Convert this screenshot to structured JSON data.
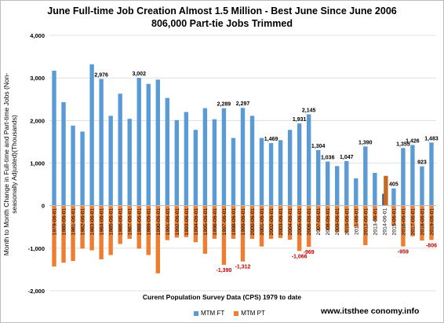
{
  "title": "June Full-time Job Creation Almost 1.5 Million - Best June Since June 2006",
  "subtitle": "806,000 Part-tie Jobs Trimmed",
  "watermark": "www.itsthee conomy.info",
  "colors": {
    "ft": "#5b9bd5",
    "pt": "#ed7d31",
    "ft_highlight": "#3f5f8c",
    "pt_highlight": "#c76a1f",
    "label": "#c00000"
  },
  "chart_data": {
    "type": "bar",
    "title": "June Full-time Job Creation Almost 1.5 Million - Best June Since June 2006",
    "subtitle": "806,000 Part-tie Jobs Trimmed",
    "xlabel": "Curent Population Survey Data (CPS) 1979 to date",
    "ylabel": "Month to Month Change in Full-time and Part-time Jobs (Non-seasonally Adjusted)(Thousands)",
    "ylim": [
      -2000,
      4000
    ],
    "yticks": [
      -2000,
      -1000,
      0,
      1000,
      2000,
      3000,
      4000
    ],
    "ytick_labels": [
      "-2,000",
      "-1,000",
      "0",
      "1,000",
      "2,000",
      "3,000",
      "4,000"
    ],
    "grid": true,
    "legend_position": "bottom",
    "categories": [
      "1979-06-01",
      "1980-06-01",
      "1981-06-01",
      "1982-06-01",
      "1983-06-01",
      "1984-06-01",
      "1985-06-01",
      "1986-06-01",
      "1987-06-01",
      "1988-06-01",
      "1989-06-01",
      "1990-06-01",
      "1991-06-01",
      "1992-06-01",
      "1993-06-01",
      "1994-06-01",
      "1995-06-01",
      "1996-06-01",
      "1997-06-01",
      "1998-06-01",
      "1999-06-01",
      "2000-06-01",
      "2001-06-01",
      "2002-06-01",
      "2003-06-01",
      "2004-06-01",
      "2005-06-01",
      "2006-06-01",
      "2007-06-01",
      "2008-06-01",
      "2009-06-01",
      "2010-06-01",
      "2011-06-01",
      "2012-06-01",
      "2013-06-01",
      "2014-06-01",
      "2015-06-01",
      "2016-06-01",
      "2017-06-01",
      "2018-06-01",
      "2019-06-01"
    ],
    "category_labels": [
      "1979-06-01",
      "1980-06-01",
      "1981-06-01",
      "1982-06-01",
      "1983-06-01",
      "1984-06-01",
      "1985-06-01",
      "1986-06-01",
      "1987-06-01",
      "1988-06-01",
      "1989-06-01",
      "1990-06-01",
      "1991-06-01",
      "1992-06-01",
      "1993-06-01",
      "1994-06-01",
      "1995-06-01",
      "1996-06-01",
      "1997-06-01",
      "1998-06-01",
      "1999-06-01",
      "2000-06-01",
      "2001-06-01",
      "2002-06-01",
      "2003-06-01",
      "2004-06-01",
      "2005-06-01",
      "2006-06-01",
      "2007-06-01",
      "2008-06-01",
      "2009-06-01",
      "2010-06-01",
      "2011-06-01",
      "2012-06-01",
      "2013-06-01",
      "2014-06-01",
      "2015-06-01",
      "2016-06-01",
      "2017-06-01",
      "2018-06-01",
      "2019-06-01"
    ],
    "series": [
      {
        "name": "MTM FT",
        "values": [
          3170,
          2430,
          1880,
          1740,
          3320,
          2976,
          2110,
          2630,
          2040,
          3002,
          2860,
          2960,
          2530,
          2010,
          2200,
          1780,
          2290,
          2030,
          2289,
          1590,
          2297,
          2110,
          1590,
          1469,
          1540,
          1780,
          1931,
          2145,
          1304,
          1036,
          930,
          1047,
          640,
          1390,
          770,
          280,
          405,
          1355,
          1426,
          923,
          1483
        ]
      },
      {
        "name": "MTM PT",
        "values": [
          -1430,
          -1340,
          -1300,
          -1010,
          -1050,
          -1260,
          -1160,
          -900,
          -780,
          -1010,
          -1160,
          -1590,
          -810,
          -750,
          -740,
          -860,
          -1130,
          -780,
          -1390,
          -780,
          -1312,
          -780,
          -960,
          -780,
          -760,
          -800,
          -1066,
          -969,
          -590,
          -570,
          -620,
          -640,
          -500,
          -930,
          -360,
          700,
          -470,
          -959,
          -720,
          -820,
          -806
        ]
      }
    ],
    "data_labels": [
      {
        "index": 5,
        "series": "MTM FT",
        "text": "2,976"
      },
      {
        "index": 9,
        "series": "MTM FT",
        "text": "3,002"
      },
      {
        "index": 18,
        "series": "MTM FT",
        "text": "2,289"
      },
      {
        "index": 20,
        "series": "MTM FT",
        "text": "2,297"
      },
      {
        "index": 23,
        "series": "MTM FT",
        "text": "1,469"
      },
      {
        "index": 26,
        "series": "MTM FT",
        "text": "1,931"
      },
      {
        "index": 27,
        "series": "MTM FT",
        "text": "2,145"
      },
      {
        "index": 28,
        "series": "MTM FT",
        "text": "1,304"
      },
      {
        "index": 29,
        "series": "MTM FT",
        "text": "1,036"
      },
      {
        "index": 31,
        "series": "MTM FT",
        "text": "1,047"
      },
      {
        "index": 33,
        "series": "MTM FT",
        "text": "1,390"
      },
      {
        "index": 36,
        "series": "MTM FT",
        "text": "405"
      },
      {
        "index": 37,
        "series": "MTM FT",
        "text": "1,355"
      },
      {
        "index": 38,
        "series": "MTM FT",
        "text": "1,426"
      },
      {
        "index": 39,
        "series": "MTM FT",
        "text": "923"
      },
      {
        "index": 40,
        "series": "MTM FT",
        "text": "1,483"
      },
      {
        "index": 18,
        "series": "MTM PT",
        "text": "-1,390"
      },
      {
        "index": 20,
        "series": "MTM PT",
        "text": "-1,312"
      },
      {
        "index": 26,
        "series": "MTM PT",
        "text": "-1,066"
      },
      {
        "index": 27,
        "series": "MTM PT",
        "text": "-969"
      },
      {
        "index": 37,
        "series": "MTM PT",
        "text": "-959"
      },
      {
        "index": 40,
        "series": "MTM PT",
        "text": "-806"
      }
    ],
    "highlight_index": 35
  }
}
